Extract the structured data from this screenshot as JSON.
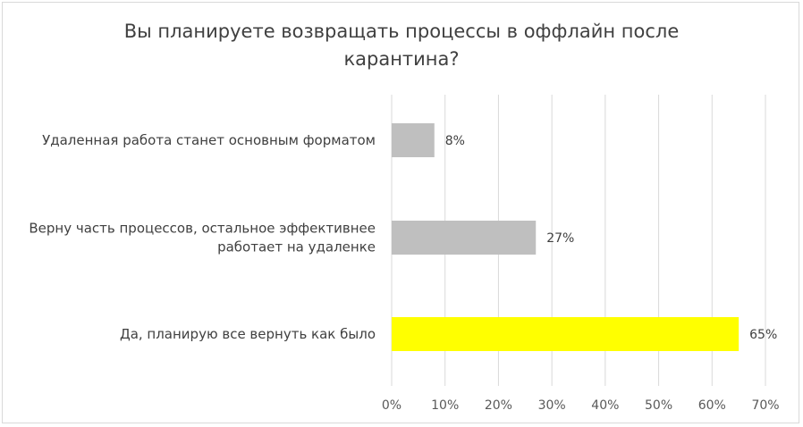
{
  "chart_data": {
    "type": "bar",
    "orientation": "horizontal",
    "title": "Вы планируете возвращать процессы в оффлайн после карантина?",
    "categories": [
      [
        "Удаленная работа станет основным форматом"
      ],
      [
        "Верну часть процессов, остальное эффективнее",
        "работает на удаленке"
      ],
      [
        "Да, планирую все вернуть как было"
      ]
    ],
    "values": [
      8,
      27,
      65
    ],
    "value_labels": [
      "8%",
      "27%",
      "65%"
    ],
    "bar_colors": [
      "#bfbfbf",
      "#bfbfbf",
      "#ffff00"
    ],
    "xlim": [
      0,
      70
    ],
    "xticks": [
      "0%",
      "10%",
      "20%",
      "30%",
      "40%",
      "50%",
      "60%",
      "70%"
    ],
    "xtick_values": [
      0,
      10,
      20,
      30,
      40,
      50,
      60,
      70
    ],
    "grid": true,
    "legend": "none",
    "colors": {
      "grid": "#d9d9d9",
      "text": "#404040"
    }
  }
}
